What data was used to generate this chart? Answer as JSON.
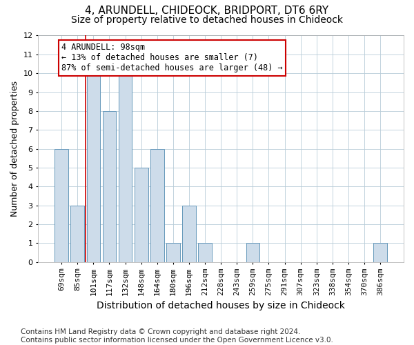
{
  "title1": "4, ARUNDELL, CHIDEOCK, BRIDPORT, DT6 6RY",
  "title2": "Size of property relative to detached houses in Chideock",
  "xlabel": "Distribution of detached houses by size in Chideock",
  "ylabel": "Number of detached properties",
  "footnote": "Contains HM Land Registry data © Crown copyright and database right 2024.\nContains public sector information licensed under the Open Government Licence v3.0.",
  "annotation_line1": "4 ARUNDELL: 98sqm",
  "annotation_line2": "← 13% of detached houses are smaller (7)",
  "annotation_line3": "87% of semi-detached houses are larger (48) →",
  "categories": [
    "69sqm",
    "85sqm",
    "101sqm",
    "117sqm",
    "132sqm",
    "148sqm",
    "164sqm",
    "180sqm",
    "196sqm",
    "212sqm",
    "228sqm",
    "243sqm",
    "259sqm",
    "275sqm",
    "291sqm",
    "307sqm",
    "323sqm",
    "338sqm",
    "354sqm",
    "370sqm",
    "386sqm"
  ],
  "values": [
    6,
    3,
    10,
    8,
    10,
    5,
    6,
    1,
    3,
    1,
    0,
    0,
    1,
    0,
    0,
    0,
    0,
    0,
    0,
    0,
    1
  ],
  "bar_color": "#cddcea",
  "bar_edge_color": "#6699bb",
  "annotation_box_edge_color": "#cc0000",
  "red_line_x": 1.5,
  "ylim": [
    0,
    12
  ],
  "yticks": [
    0,
    1,
    2,
    3,
    4,
    5,
    6,
    7,
    8,
    9,
    10,
    11,
    12
  ],
  "background_color": "#ffffff",
  "grid_color": "#b8ccd8",
  "title1_fontsize": 11,
  "title2_fontsize": 10,
  "xlabel_fontsize": 10,
  "ylabel_fontsize": 9,
  "tick_fontsize": 8,
  "annotation_fontsize": 8.5,
  "footnote_fontsize": 7.5
}
